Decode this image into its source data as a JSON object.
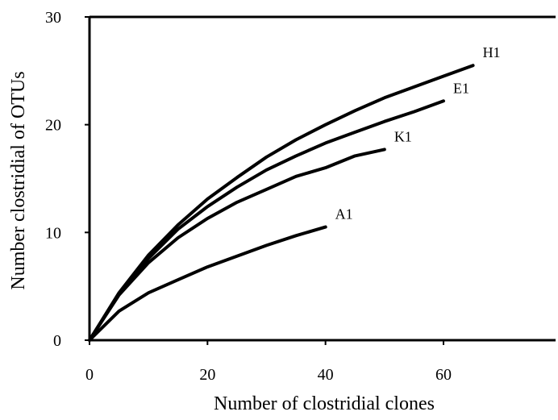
{
  "chart_data": {
    "type": "line",
    "xlabel": "Number of clostridial clones",
    "ylabel": "Number clostridial of OTUs",
    "xlim": [
      0,
      79
    ],
    "ylim": [
      0,
      30
    ],
    "xticks": [
      0,
      20,
      40,
      60
    ],
    "yticks": [
      0,
      10,
      20,
      30
    ],
    "grid": false,
    "legend": "none",
    "line_color": "#000000",
    "series": [
      {
        "name": "H1",
        "x": [
          0,
          5,
          10,
          15,
          20,
          25,
          30,
          35,
          40,
          45,
          50,
          55,
          60,
          65
        ],
        "y": [
          0,
          4.4,
          7.9,
          10.7,
          13.1,
          15.1,
          17.0,
          18.6,
          20.0,
          21.3,
          22.5,
          23.5,
          24.5,
          25.5
        ]
      },
      {
        "name": "E1",
        "x": [
          0,
          5,
          10,
          15,
          20,
          25,
          30,
          35,
          40,
          45,
          50,
          55,
          60
        ],
        "y": [
          0,
          4.3,
          7.6,
          10.3,
          12.4,
          14.2,
          15.8,
          17.1,
          18.3,
          19.3,
          20.3,
          21.2,
          22.2
        ]
      },
      {
        "name": "K1",
        "x": [
          0,
          5,
          10,
          15,
          20,
          25,
          30,
          35,
          40,
          45,
          50
        ],
        "y": [
          0,
          4.2,
          7.2,
          9.5,
          11.3,
          12.8,
          14.0,
          15.2,
          16.0,
          17.1,
          17.7
        ]
      },
      {
        "name": "A1",
        "x": [
          0,
          5,
          10,
          15,
          20,
          25,
          30,
          35,
          40
        ],
        "y": [
          0,
          2.7,
          4.4,
          5.6,
          6.8,
          7.8,
          8.8,
          9.7,
          10.5
        ]
      }
    ]
  }
}
